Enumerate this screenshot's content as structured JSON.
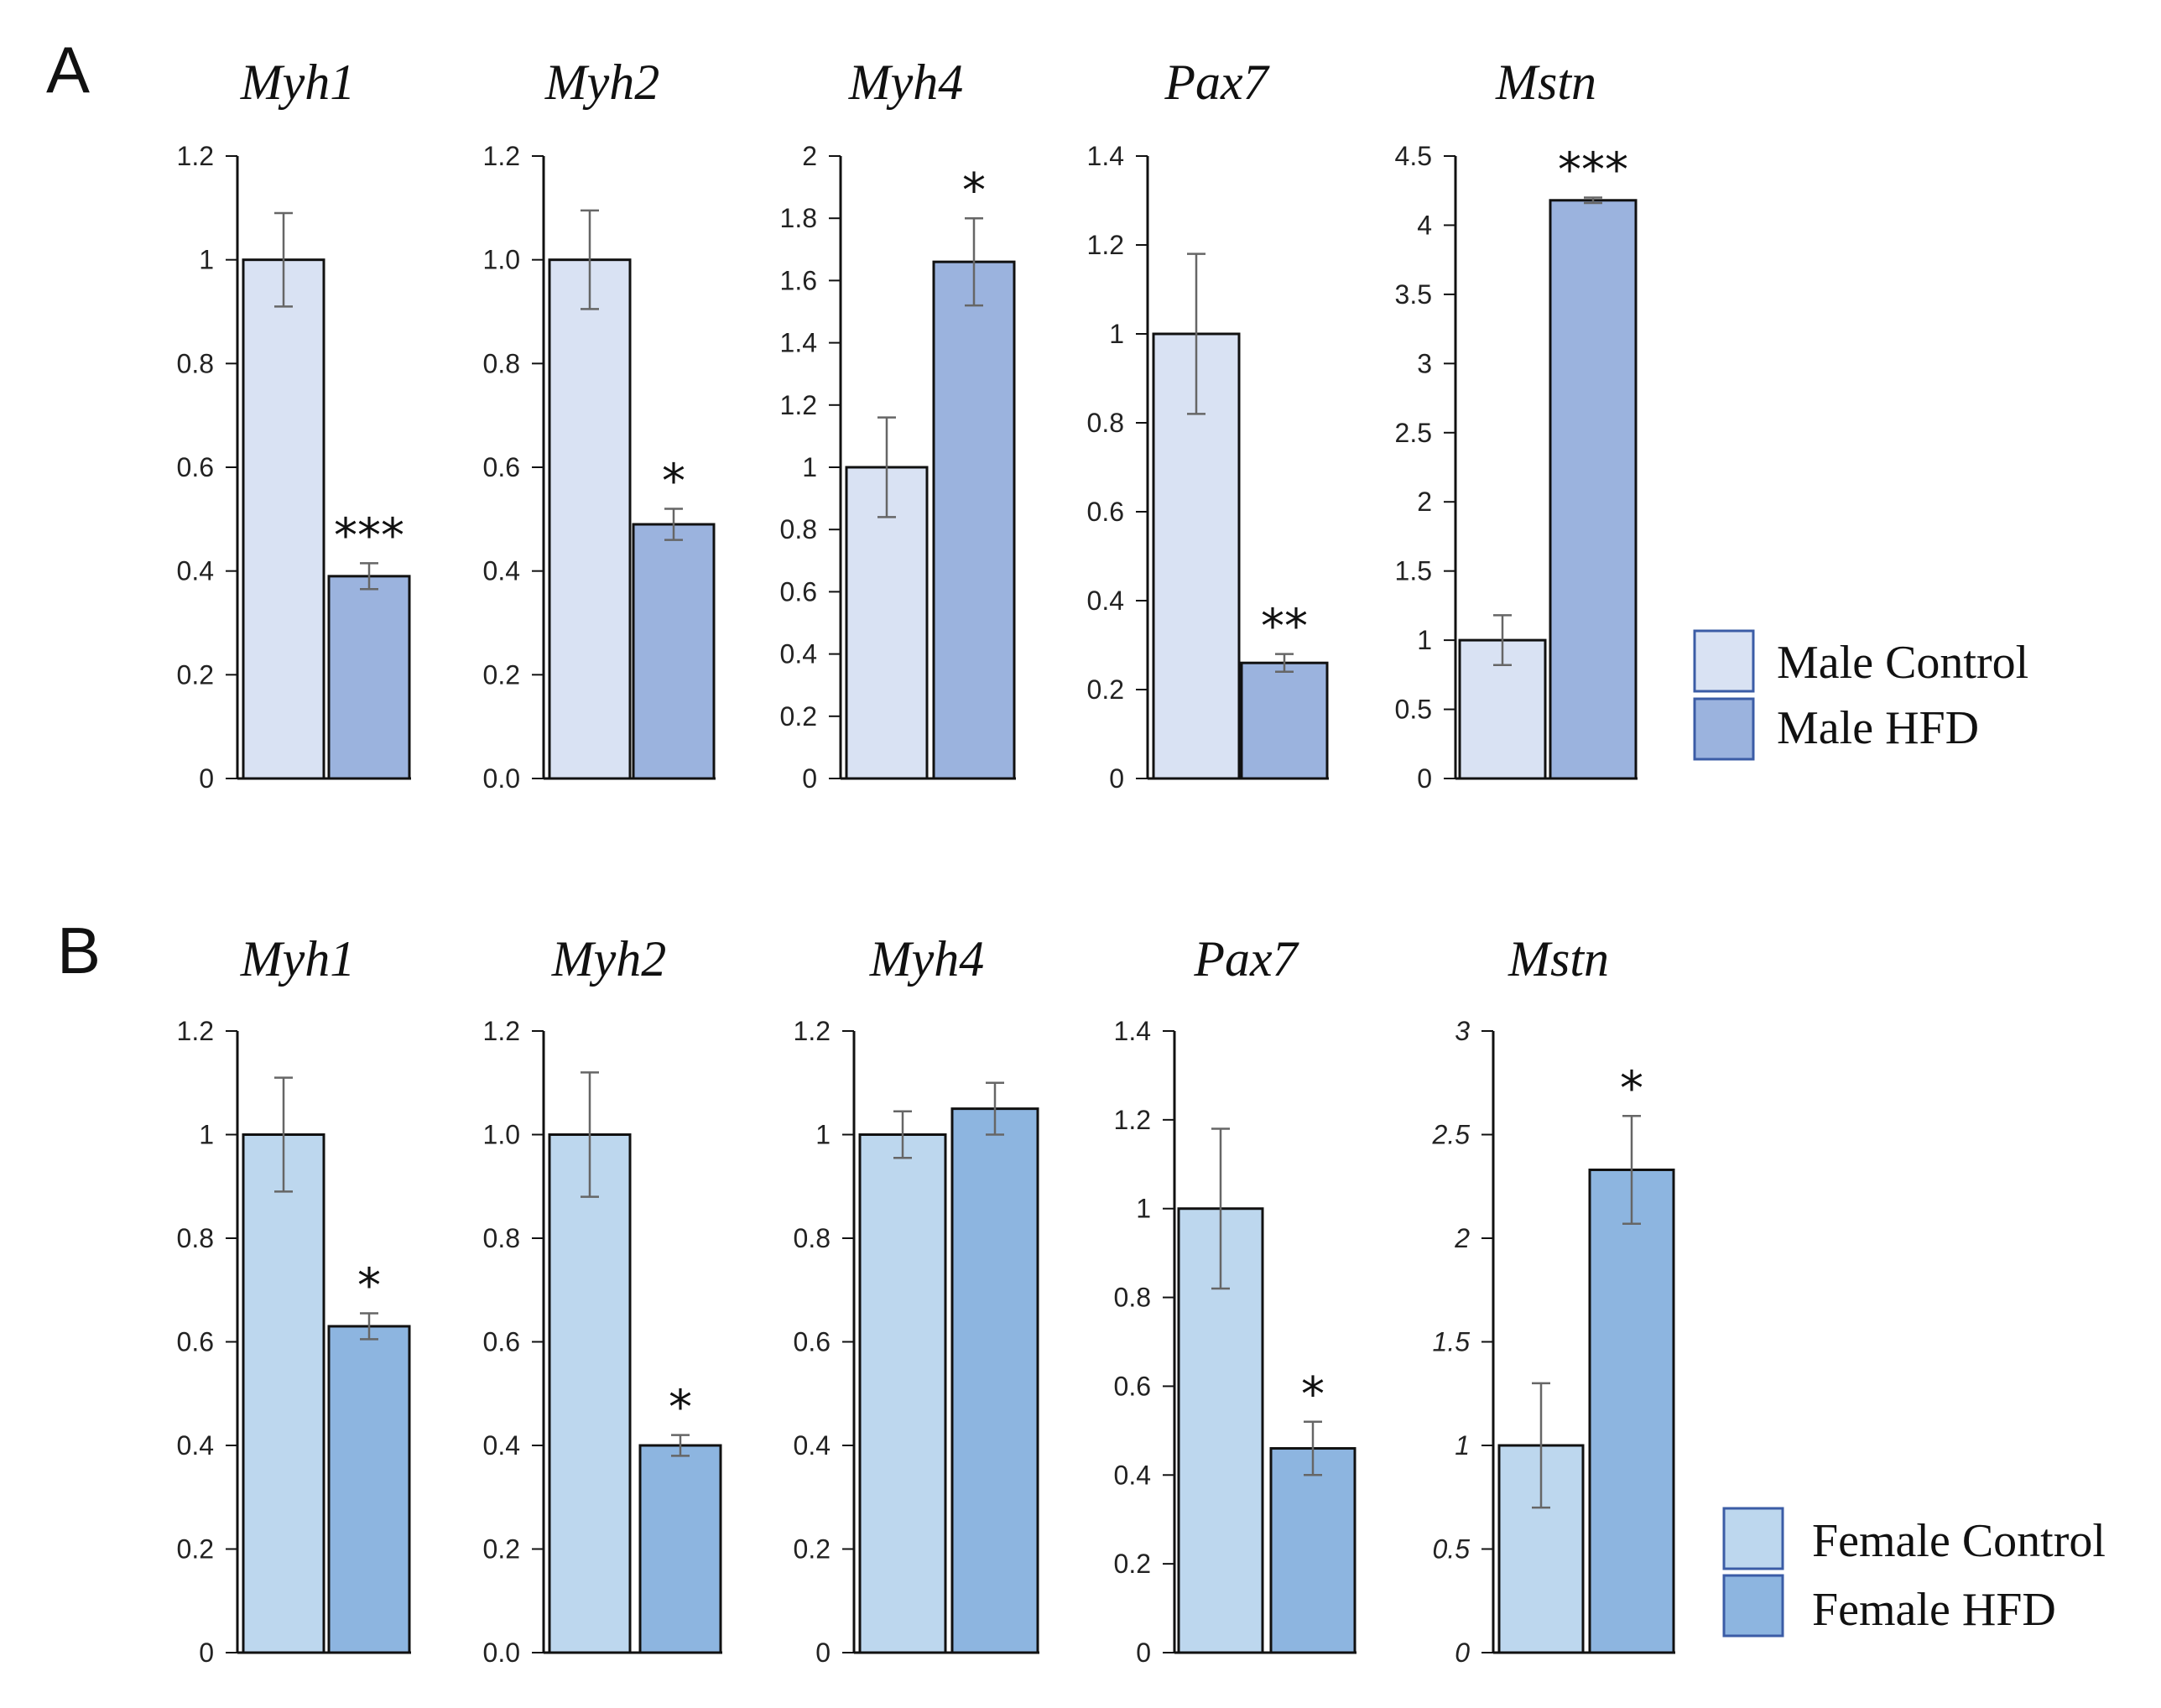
{
  "chart_data": [
    {
      "panel": "A",
      "type": "bar",
      "title": "Myh1",
      "categories": [
        "Male Control",
        "Male HFD"
      ],
      "values": [
        1.0,
        0.39
      ],
      "errors": [
        0.09,
        0.025
      ],
      "significance": [
        "",
        "***"
      ],
      "ylim": [
        0,
        1.2
      ],
      "yticks": [
        "0",
        "0.2",
        "0.4",
        "0.6",
        "0.8",
        "1",
        "1.2"
      ],
      "tick_values": [
        0,
        0.2,
        0.4,
        0.6,
        0.8,
        1.0,
        1.2
      ],
      "colors": [
        "#d9e2f3",
        "#9bb3de"
      ]
    },
    {
      "panel": "A",
      "type": "bar",
      "title": "Myh2",
      "categories": [
        "Male Control",
        "Male HFD"
      ],
      "values": [
        1.0,
        0.49
      ],
      "errors": [
        0.095,
        0.03
      ],
      "significance": [
        "",
        "*"
      ],
      "ylim": [
        0,
        1.2
      ],
      "yticks": [
        "0.0",
        "0.2",
        "0.4",
        "0.6",
        "0.8",
        "1.0",
        "1.2"
      ],
      "tick_values": [
        0,
        0.2,
        0.4,
        0.6,
        0.8,
        1.0,
        1.2
      ],
      "colors": [
        "#d9e2f3",
        "#9bb3de"
      ]
    },
    {
      "panel": "A",
      "type": "bar",
      "title": "Myh4",
      "categories": [
        "Male Control",
        "Male HFD"
      ],
      "values": [
        1.0,
        1.66
      ],
      "errors": [
        0.16,
        0.14
      ],
      "significance": [
        "",
        "*"
      ],
      "ylim": [
        0,
        2
      ],
      "yticks": [
        "0",
        "0.2",
        "0.4",
        "0.6",
        "0.8",
        "1",
        "1.2",
        "1.4",
        "1.6",
        "1.8",
        "2"
      ],
      "tick_values": [
        0,
        0.2,
        0.4,
        0.6,
        0.8,
        1.0,
        1.2,
        1.4,
        1.6,
        1.8,
        2.0
      ],
      "colors": [
        "#d9e2f3",
        "#9bb3de"
      ]
    },
    {
      "panel": "A",
      "type": "bar",
      "title": "Pax7",
      "categories": [
        "Male Control",
        "Male HFD"
      ],
      "values": [
        1.0,
        0.26
      ],
      "errors": [
        0.18,
        0.02
      ],
      "significance": [
        "",
        "**"
      ],
      "ylim": [
        0,
        1.4
      ],
      "yticks": [
        "0",
        "0.2",
        "0.4",
        "0.6",
        "0.8",
        "1",
        "1.2",
        "1.4"
      ],
      "tick_values": [
        0,
        0.2,
        0.4,
        0.6,
        0.8,
        1.0,
        1.2,
        1.4
      ],
      "colors": [
        "#d9e2f3",
        "#9bb3de"
      ]
    },
    {
      "panel": "A",
      "type": "bar",
      "title": "Mstn",
      "categories": [
        "Male Control",
        "Male HFD"
      ],
      "values": [
        1.0,
        4.18
      ],
      "errors": [
        0.18,
        0.02
      ],
      "significance": [
        "",
        "***"
      ],
      "ylim": [
        0,
        4.5
      ],
      "yticks": [
        "0",
        "0.5",
        "1",
        "1.5",
        "2",
        "2.5",
        "3",
        "3.5",
        "4",
        "4.5"
      ],
      "tick_values": [
        0,
        0.5,
        1.0,
        1.5,
        2.0,
        2.5,
        3.0,
        3.5,
        4.0,
        4.5
      ],
      "colors": [
        "#d9e2f3",
        "#9bb3de"
      ]
    },
    {
      "panel": "B",
      "type": "bar",
      "title": "Myh1",
      "categories": [
        "Female Control",
        "Female HFD"
      ],
      "values": [
        1.0,
        0.63
      ],
      "errors": [
        0.11,
        0.025
      ],
      "significance": [
        "",
        "*"
      ],
      "ylim": [
        0,
        1.2
      ],
      "yticks": [
        "0",
        "0.2",
        "0.4",
        "0.6",
        "0.8",
        "1",
        "1.2"
      ],
      "tick_values": [
        0,
        0.2,
        0.4,
        0.6,
        0.8,
        1.0,
        1.2
      ],
      "colors": [
        "#bdd7ee",
        "#8db5e0"
      ]
    },
    {
      "panel": "B",
      "type": "bar",
      "title": "Myh2",
      "categories": [
        "Female Control",
        "Female HFD"
      ],
      "values": [
        1.0,
        0.4
      ],
      "errors": [
        0.12,
        0.02
      ],
      "significance": [
        "",
        "*"
      ],
      "ylim": [
        0,
        1.2
      ],
      "yticks": [
        "0.0",
        "0.2",
        "0.4",
        "0.6",
        "0.8",
        "1.0",
        "1.2"
      ],
      "tick_values": [
        0,
        0.2,
        0.4,
        0.6,
        0.8,
        1.0,
        1.2
      ],
      "colors": [
        "#bdd7ee",
        "#8db5e0"
      ]
    },
    {
      "panel": "B",
      "type": "bar",
      "title": "Myh4",
      "categories": [
        "Female Control",
        "Female HFD"
      ],
      "values": [
        1.0,
        1.05
      ],
      "errors": [
        0.045,
        0.05
      ],
      "significance": [
        "",
        ""
      ],
      "ylim": [
        0,
        1.2
      ],
      "yticks": [
        "0",
        "0.2",
        "0.4",
        "0.6",
        "0.8",
        "1",
        "1.2"
      ],
      "tick_values": [
        0,
        0.2,
        0.4,
        0.6,
        0.8,
        1.0,
        1.2
      ],
      "colors": [
        "#bdd7ee",
        "#8db5e0"
      ]
    },
    {
      "panel": "B",
      "type": "bar",
      "title": "Pax7",
      "categories": [
        "Female Control",
        "Female HFD"
      ],
      "values": [
        1.0,
        0.46
      ],
      "errors": [
        0.18,
        0.06
      ],
      "significance": [
        "",
        "*"
      ],
      "ylim": [
        0,
        1.4
      ],
      "yticks": [
        "0",
        "0.2",
        "0.4",
        "0.6",
        "0.8",
        "1",
        "1.2",
        "1.4"
      ],
      "tick_values": [
        0,
        0.2,
        0.4,
        0.6,
        0.8,
        1.0,
        1.2,
        1.4
      ],
      "colors": [
        "#bdd7ee",
        "#8db5e0"
      ]
    },
    {
      "panel": "B",
      "type": "bar",
      "title": "Mstn",
      "categories": [
        "Female Control",
        "Female HFD"
      ],
      "values": [
        1.0,
        2.33
      ],
      "errors": [
        0.3,
        0.26
      ],
      "significance": [
        "",
        "*"
      ],
      "ylim": [
        0,
        3
      ],
      "yticks": [
        "0",
        "0.5",
        "1",
        "1.5",
        "2",
        "2.5",
        "3"
      ],
      "tick_values": [
        0,
        0.5,
        1.0,
        1.5,
        2.0,
        2.5,
        3.0
      ],
      "italic_ticks": true,
      "colors": [
        "#bdd7ee",
        "#8db5e0"
      ]
    }
  ],
  "panels": [
    {
      "letter": "A",
      "legend": [
        "Male Control",
        "Male HFD"
      ],
      "colors": [
        "#d9e2f3",
        "#9bb3de"
      ]
    },
    {
      "letter": "B",
      "legend": [
        "Female Control",
        "Female HFD"
      ],
      "colors": [
        "#bdd7ee",
        "#8db5e0"
      ]
    }
  ]
}
